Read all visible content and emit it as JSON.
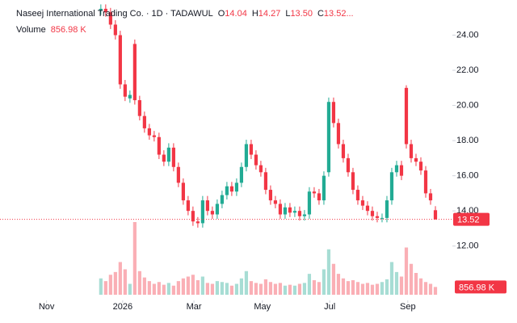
{
  "chart_data": {
    "type": "candlestick",
    "title": "Naseej International Trading Co. · 1D · TADAWUL",
    "ohlc_legend": [
      {
        "key": "O",
        "value": "14.04"
      },
      {
        "key": "H",
        "value": "14.27"
      },
      {
        "key": "L",
        "value": "13.50"
      },
      {
        "key": "C",
        "value": "13.52..."
      }
    ],
    "up_color": "#22ab94",
    "down_color": "#f23645",
    "categories": [
      null,
      null,
      null,
      null,
      null,
      null,
      null,
      null,
      null,
      null,
      null,
      null,
      null,
      null,
      null,
      null,
      null,
      null,
      null,
      null,
      null,
      null,
      null,
      null,
      null,
      null,
      null,
      null,
      null,
      null,
      null,
      null,
      null,
      null,
      null,
      null,
      null,
      null,
      null,
      null,
      null,
      null,
      null,
      null,
      null,
      null,
      null,
      null,
      null,
      null,
      null,
      null,
      null,
      null,
      null,
      null,
      null,
      null,
      null,
      null,
      null,
      null,
      null,
      null,
      null,
      null,
      null,
      null,
      null,
      null
    ],
    "open": [
      25.4,
      25.5,
      25.3,
      24.6,
      24.0,
      21.2,
      20.4,
      23.5,
      20.3,
      19.4,
      18.7,
      18.3,
      18.2,
      17.2,
      16.8,
      17.6,
      16.5,
      15.6,
      14.6,
      14.0,
      13.4,
      13.3,
      14.6,
      14.0,
      13.8,
      14.4,
      14.9,
      15.4,
      15.1,
      15.6,
      16.5,
      17.8,
      17.2,
      16.6,
      16.2,
      15.2,
      14.6,
      14.4,
      13.8,
      14.2,
      13.9,
      14.0,
      13.7,
      13.8,
      15.1,
      15.0,
      14.6,
      16.2,
      20.2,
      19.0,
      17.8,
      17.0,
      16.2,
      15.2,
      14.6,
      14.3,
      14.0,
      13.7,
      13.6,
      13.6,
      14.6,
      16.2,
      16.6,
      21.0,
      17.8,
      17.0,
      16.8,
      16.3,
      15.0,
      14.04
    ],
    "high": [
      25.75,
      25.75,
      25.55,
      24.85,
      24.25,
      21.45,
      20.85,
      23.75,
      20.55,
      19.65,
      18.95,
      18.55,
      18.45,
      17.45,
      17.85,
      17.85,
      16.75,
      15.85,
      14.85,
      14.25,
      13.65,
      14.85,
      14.85,
      14.25,
      14.65,
      15.15,
      15.65,
      15.65,
      15.85,
      16.75,
      18.05,
      18.05,
      17.45,
      16.85,
      16.45,
      15.45,
      14.85,
      14.65,
      14.45,
      14.45,
      14.25,
      14.25,
      14.05,
      15.35,
      15.35,
      15.25,
      16.25,
      20.45,
      20.45,
      19.25,
      18.05,
      17.25,
      16.45,
      15.45,
      14.85,
      14.55,
      14.25,
      13.95,
      13.85,
      14.85,
      16.45,
      16.85,
      16.85,
      21.15,
      18.05,
      17.25,
      17.05,
      16.55,
      15.25,
      14.27
    ],
    "low": [
      25.15,
      25.05,
      24.35,
      23.75,
      20.95,
      20.25,
      20.15,
      20.05,
      19.15,
      18.45,
      18.05,
      17.95,
      16.95,
      16.55,
      16.55,
      16.25,
      15.35,
      14.35,
      13.75,
      13.15,
      13.05,
      13.05,
      13.75,
      13.55,
      13.55,
      14.15,
      14.65,
      14.85,
      14.85,
      15.35,
      16.25,
      16.95,
      16.35,
      15.95,
      14.95,
      14.35,
      14.15,
      13.55,
      13.55,
      13.65,
      13.65,
      13.45,
      13.45,
      13.55,
      14.75,
      14.35,
      14.35,
      15.95,
      18.75,
      17.55,
      16.75,
      15.95,
      14.95,
      14.35,
      14.05,
      13.75,
      13.45,
      13.35,
      13.35,
      13.35,
      14.35,
      15.95,
      15.75,
      17.55,
      16.75,
      16.55,
      16.05,
      14.75,
      14.35,
      13.5
    ],
    "close": [
      25.5,
      25.3,
      24.6,
      24.0,
      21.2,
      20.5,
      20.6,
      20.3,
      19.4,
      18.7,
      18.3,
      18.2,
      17.2,
      16.8,
      17.6,
      16.5,
      15.6,
      14.6,
      14.0,
      13.4,
      13.3,
      14.6,
      14.0,
      13.8,
      14.4,
      14.9,
      15.4,
      15.1,
      15.6,
      16.5,
      17.8,
      17.2,
      16.6,
      16.2,
      15.2,
      14.6,
      14.4,
      13.8,
      14.2,
      13.9,
      14.0,
      13.7,
      13.8,
      15.1,
      15.0,
      14.6,
      16.0,
      20.2,
      19.0,
      17.8,
      17.0,
      16.2,
      15.2,
      14.6,
      14.3,
      14.0,
      13.7,
      13.6,
      13.6,
      14.6,
      16.2,
      16.6,
      16.0,
      17.8,
      17.0,
      16.8,
      16.3,
      15.0,
      14.6,
      13.52
    ],
    "last_price_label": "13.52",
    "volume": {
      "name": "Volume",
      "values": [
        1800,
        1500,
        2200,
        2500,
        3600,
        2800,
        1200,
        8000,
        2600,
        1900,
        1500,
        1200,
        1400,
        1100,
        1300,
        1000,
        1500,
        1800,
        2000,
        2200,
        1600,
        2000,
        1300,
        1200,
        1500,
        1400,
        1300,
        1000,
        1200,
        1800,
        2600,
        1500,
        1300,
        1200,
        1700,
        1400,
        1200,
        1300,
        1000,
        1100,
        1000,
        1200,
        1300,
        2300,
        1600,
        1400,
        2800,
        5000,
        3400,
        2300,
        1800,
        1500,
        1600,
        1400,
        1200,
        1300,
        1100,
        1200,
        1400,
        1700,
        3600,
        2500,
        2000,
        5200,
        3400,
        2400,
        1800,
        1400,
        1200,
        856.98
      ],
      "last_label": "856.98 K"
    },
    "xlim": [
      -20.8,
      72.5
    ],
    "xticks": [
      {
        "value": -11.2,
        "label": "Nov"
      },
      {
        "value": 4.5,
        "label": "2026"
      },
      {
        "value": 19.2,
        "label": "Mar"
      },
      {
        "value": 33.3,
        "label": "May"
      },
      {
        "value": 47.2,
        "label": "Jul"
      },
      {
        "value": 63.3,
        "label": "Sep"
      }
    ],
    "ylim": [
      9,
      26
    ],
    "yticks": [
      {
        "value": 12,
        "label": "12.00"
      },
      {
        "value": 14,
        "label": "14.00"
      },
      {
        "value": 16,
        "label": "16.00"
      },
      {
        "value": 18,
        "label": "18.00"
      },
      {
        "value": 20,
        "label": "20.00"
      },
      {
        "value": 22,
        "label": "22.00"
      },
      {
        "value": 24,
        "label": "24.00"
      }
    ],
    "grid": false
  }
}
